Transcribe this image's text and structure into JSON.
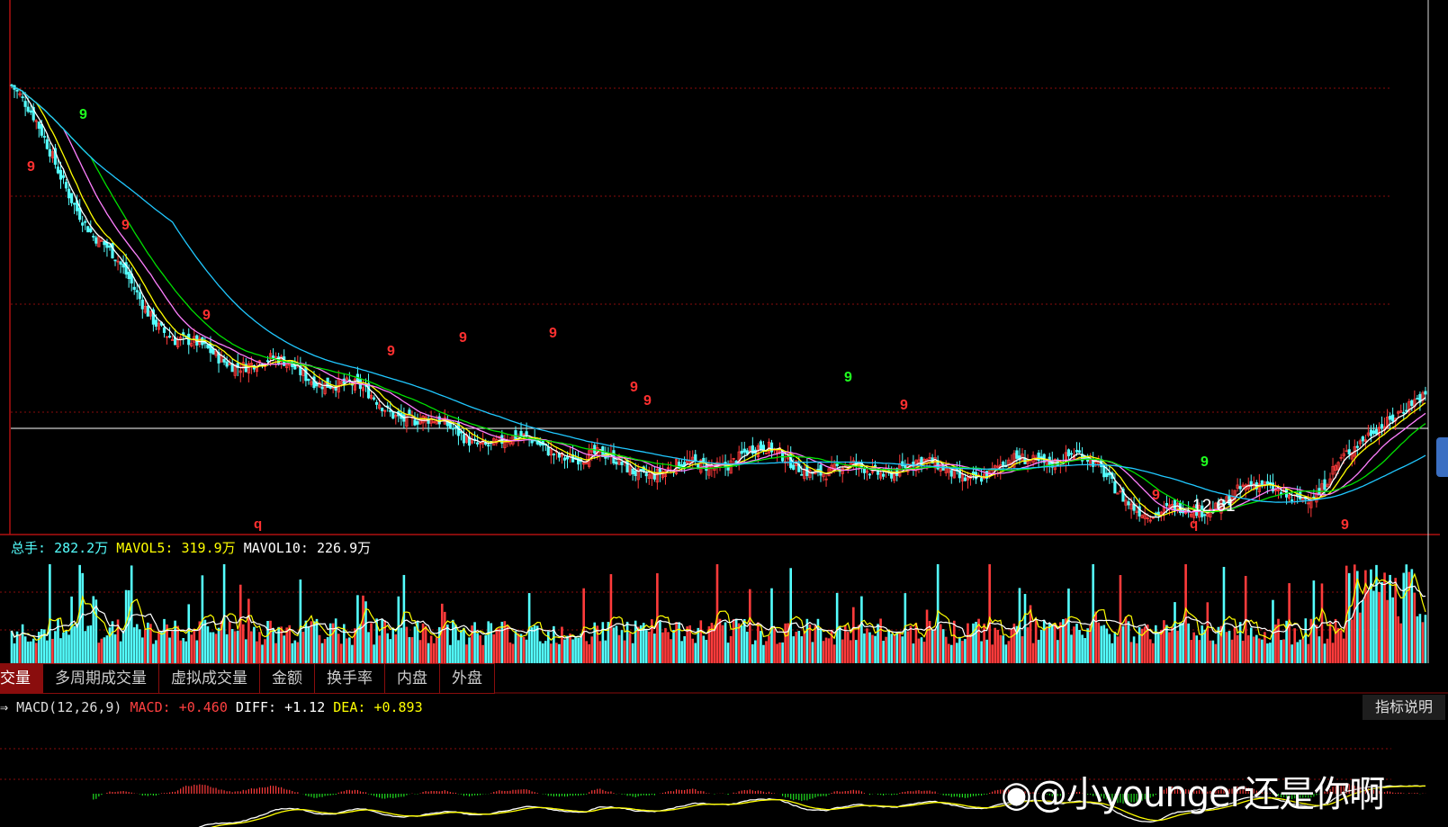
{
  "colors": {
    "up": "#ff3b3b",
    "down": "#54ffff",
    "ma_white": "#ffffff",
    "ma_yellow": "#ffff00",
    "ma_magenta": "#ff7fff",
    "ma_green": "#00e000",
    "ma_cyan": "#20c8ff",
    "grid": "#8a0d0d",
    "td_magenta": "#ff40ff",
    "td_red": "#ff3030",
    "td_green": "#20ff20"
  },
  "price_chart": {
    "low_annotation": "←12.61",
    "td_red_nine": "9",
    "td_green_nine": "9"
  },
  "volume_legend": {
    "label": "总手:",
    "value": "282.2万",
    "mavol5_label": "MAVOL5:",
    "mavol5_value": "319.9万",
    "mavol10_label": "MAVOL10:",
    "mavol10_value": "226.9万"
  },
  "tabs": [
    "交量",
    "多周期成交量",
    "虚拟成交量",
    "金额",
    "换手率",
    "内盘",
    "外盘"
  ],
  "macd_legend": {
    "prefix": "⇒",
    "name": "MACD(12,26,9)",
    "macd_label": "MACD:",
    "macd_value": "+0.460",
    "diff_label": "DIFF:",
    "diff_value": "+1.12",
    "dea_label": "DEA:",
    "dea_value": "+0.893"
  },
  "indicator_button": "指标说明",
  "watermark": "@小younger还是你啊",
  "chart_data": [
    {
      "type": "candlestick",
      "title": "",
      "ylabel": "",
      "series": [
        {
          "name": "",
          "note": "daily price, long downtrend then sharp rebound",
          "low_marked": 12.61,
          "keypoints_index": [
            0,
            30,
            60,
            90,
            120,
            150,
            180,
            210,
            240,
            270,
            300,
            330,
            360,
            390,
            420,
            450,
            480,
            500,
            520
          ],
          "keypoints_price": [
            34.0,
            26.0,
            21.5,
            20.0,
            18.5,
            17.5,
            16.0,
            14.8,
            14.9,
            15.5,
            14.0,
            15.3,
            14.4,
            15.0,
            12.61,
            13.4,
            12.9,
            17.2,
            18.5
          ]
        }
      ]
    },
    {
      "type": "bar",
      "title": "",
      "series": [
        {
          "name": "总手",
          "last_value": "282.2万"
        },
        {
          "name": "MAVOL5",
          "last_value": "319.9万"
        },
        {
          "name": "MAVOL10",
          "last_value": "226.9万"
        }
      ]
    },
    {
      "type": "bar",
      "title": "",
      "series": [
        {
          "name": "MACD",
          "last_value": 0.46
        },
        {
          "name": "DIFF",
          "last_value": 1.12
        },
        {
          "name": "DEA",
          "last_value": 0.893
        }
      ]
    }
  ]
}
